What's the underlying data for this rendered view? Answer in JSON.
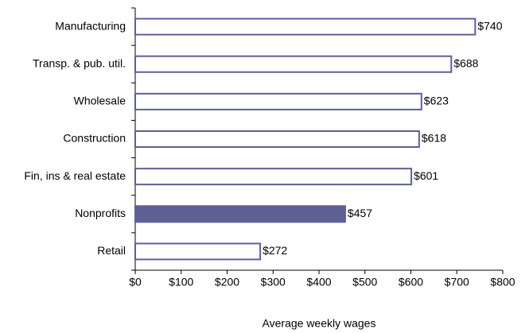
{
  "chart_data": {
    "type": "barh",
    "categories": [
      "Manufacturing",
      "Transp. & pub. util.",
      "Wholesale",
      "Construction",
      "Fin, ins & real estate",
      "Nonprofits",
      "Retail"
    ],
    "values": [
      740,
      688,
      623,
      618,
      601,
      457,
      272
    ],
    "value_labels": [
      "$740",
      "$688",
      "$623",
      "$618",
      "$601",
      "$457",
      "$272"
    ],
    "colors": [
      "#ffffff",
      "#ffffff",
      "#ffffff",
      "#ffffff",
      "#ffffff",
      "#5f5f96",
      "#ffffff"
    ],
    "edgecolor": "#5f5f96",
    "xlim": [
      0,
      800
    ],
    "xticks": [
      {
        "value": 0,
        "label": "$0"
      },
      {
        "value": 100,
        "label": "$100"
      },
      {
        "value": 200,
        "label": "$200"
      },
      {
        "value": 300,
        "label": "$300"
      },
      {
        "value": 400,
        "label": "$400"
      },
      {
        "value": 500,
        "label": "$500"
      },
      {
        "value": 600,
        "label": "$600"
      },
      {
        "value": 700,
        "label": "$700"
      },
      {
        "value": 800,
        "label": "$800"
      }
    ],
    "xlabel": "Average weekly wages",
    "grid": false
  }
}
